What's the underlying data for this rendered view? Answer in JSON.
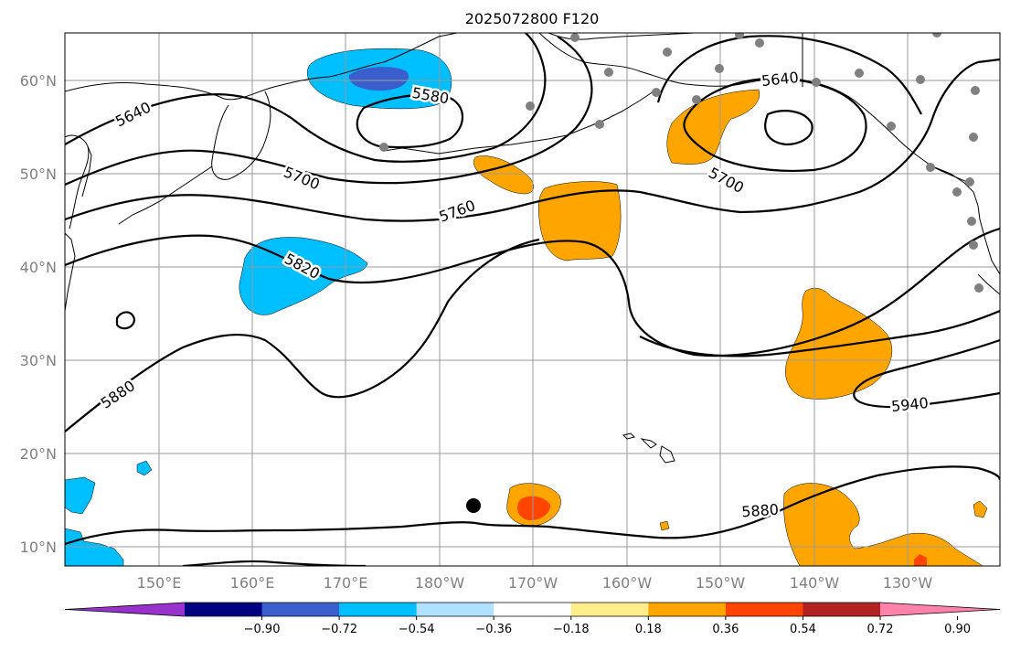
{
  "title": "2025072800 F120",
  "map": {
    "lat_ticks": [
      "60°N",
      "50°N",
      "40°N",
      "30°N",
      "20°N",
      "10°N"
    ],
    "lon_ticks": [
      "150°E",
      "160°E",
      "170°E",
      "180°W",
      "170°W",
      "160°W",
      "150°W",
      "140°W",
      "130°W"
    ],
    "contour_labels": [
      "5640",
      "5580",
      "5640",
      "5700",
      "5700",
      "5760",
      "5820",
      "5880",
      "5880",
      "5940"
    ],
    "colors": {
      "anomaly_neg_strong": "#3a5fcd",
      "anomaly_neg": "#00bfff",
      "anomaly_pos": "#ffa500",
      "anomaly_pos_strong": "#ff4500",
      "station": "#808080",
      "typhoon_marker": "#000000"
    }
  },
  "colorbar": {
    "colors": [
      "#9932cc",
      "#000080",
      "#3a5fcd",
      "#00bfff",
      "#b0e2ff",
      "#ffffff",
      "#ffec8b",
      "#ffa500",
      "#ff4500",
      "#b22222",
      "#ff82ab"
    ],
    "labels": [
      "−0.90",
      "−0.72",
      "−0.54",
      "−0.36",
      "−0.18",
      "0.18",
      "0.36",
      "0.54",
      "0.72",
      "0.90"
    ]
  }
}
